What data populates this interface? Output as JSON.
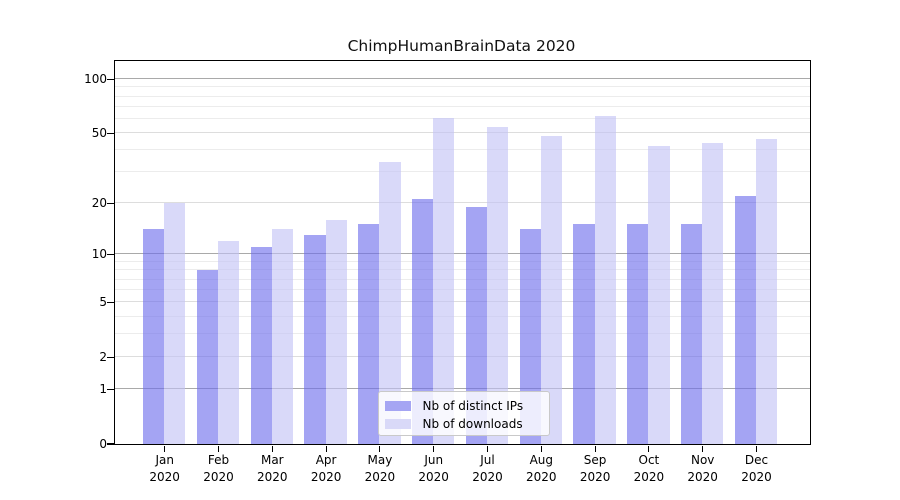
{
  "chart_data": {
    "type": "bar",
    "title": "ChimpHumanBrainData 2020",
    "categories": [
      "Jan",
      "Feb",
      "Mar",
      "Apr",
      "May",
      "Jun",
      "Jul",
      "Aug",
      "Sep",
      "Oct",
      "Nov",
      "Dec"
    ],
    "category_year": "2020",
    "series": [
      {
        "name": "Nb of distinct IPs",
        "color_solid": "#a5a5f3",
        "color_rgba": "rgba(108,108,235,0.62)",
        "values": [
          14,
          8,
          11,
          13,
          15,
          21,
          19,
          14,
          15,
          15,
          15,
          22
        ]
      },
      {
        "name": "Nb of downloads",
        "color_solid": "#d9d9f8",
        "color_rgba": "rgba(193,193,245,0.62)",
        "values": [
          20,
          12,
          14,
          16,
          34,
          60,
          54,
          48,
          62,
          42,
          44,
          46
        ]
      }
    ],
    "y_scale": "log1p",
    "y_ticks": [
      0,
      1,
      2,
      5,
      10,
      20,
      50,
      100
    ],
    "y_minor_gridlines": [
      3,
      4,
      6,
      7,
      8,
      9,
      30,
      40,
      60,
      70,
      80,
      90
    ],
    "y_decade_lines": [
      1,
      10,
      100
    ],
    "ylim": [
      0,
      126
    ],
    "grid": true,
    "legend_position": "lower center"
  },
  "colors": {
    "bar_dark": "#a5a5f3",
    "bar_light": "#d9d9f8",
    "decade_gridline": "#a9a9a9",
    "major_gridline": "#dddddd",
    "minor_gridline": "#ececec",
    "spine": "#000000",
    "text": "#000000",
    "legend_border": "#c9c9c9"
  }
}
